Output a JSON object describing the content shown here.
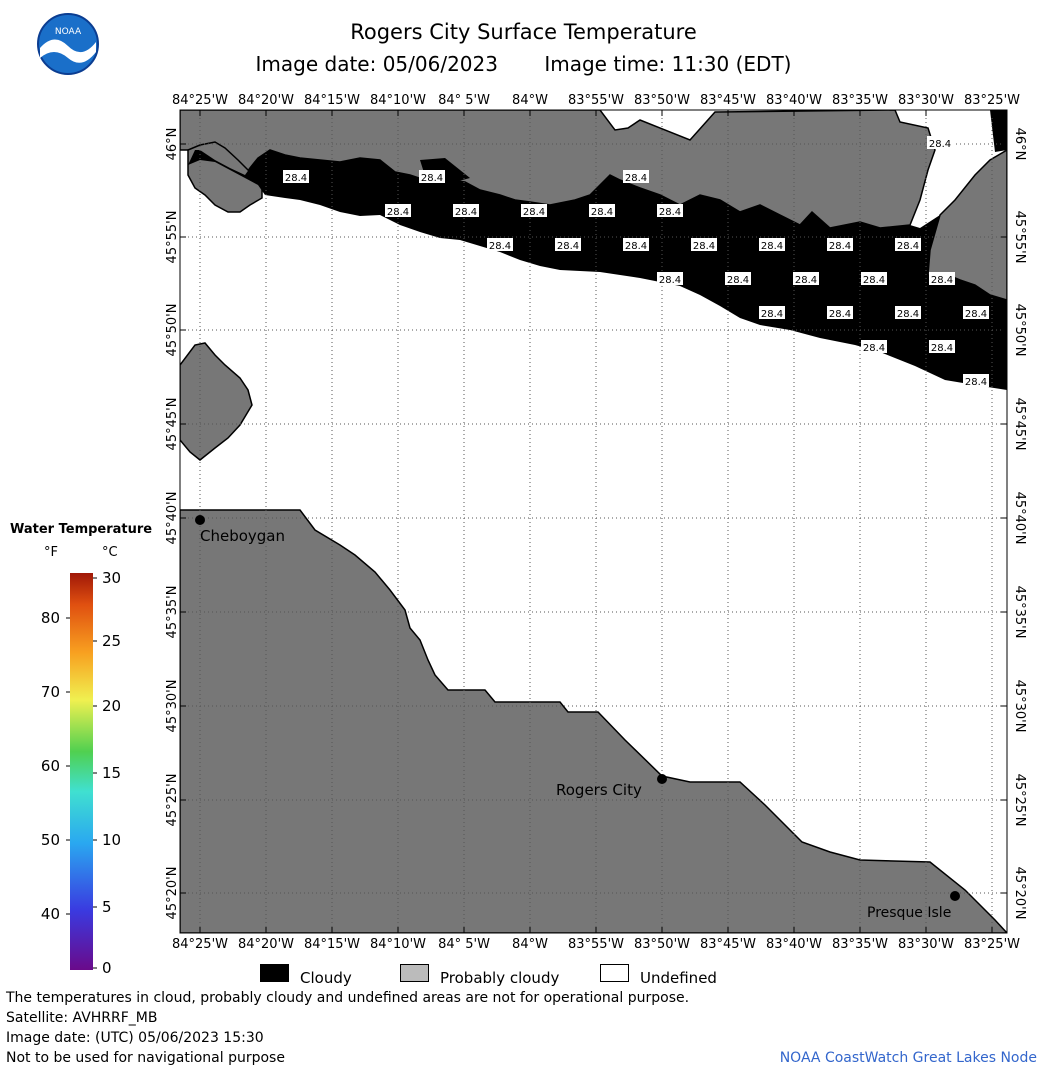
{
  "header": {
    "title": "Rogers City Surface Temperature",
    "image_date": "Image date: 05/06/2023",
    "image_time": "Image time: 11:30 (EDT)"
  },
  "logo": {
    "text": "NOAA"
  },
  "map": {
    "longitude_labels": [
      "84°25'W",
      "84°20'W",
      "84°15'W",
      "84°10'W",
      "84° 5'W",
      "84°W",
      "83°55'W",
      "83°50'W",
      "83°45'W",
      "83°40'W",
      "83°35'W",
      "83°30'W",
      "83°25'W"
    ],
    "latitude_labels": [
      "46°N",
      "45°55'N",
      "45°50'N",
      "45°45'N",
      "45°40'N",
      "45°35'N",
      "45°30'N",
      "45°25'N",
      "45°20'N"
    ],
    "cities": [
      {
        "name": "Cheboygan"
      },
      {
        "name": "Rogers City"
      },
      {
        "name": "Presque Isle"
      }
    ],
    "temperature_label": "28.4",
    "colors": {
      "land": "#777777",
      "cloud": "#000000",
      "undefined": "#ffffff",
      "grid": "#555555"
    }
  },
  "legend": {
    "title": "Water Temperature",
    "unit_f": "°F",
    "unit_c": "°C",
    "fahrenheit_ticks": [
      "80",
      "70",
      "60",
      "50",
      "40"
    ],
    "celsius_ticks": [
      "30",
      "25",
      "20",
      "15",
      "10",
      "5",
      "0"
    ]
  },
  "categories": [
    {
      "label": "Cloudy",
      "color": "#000000"
    },
    {
      "label": "Probably cloudy",
      "color": "#bbbbbb"
    },
    {
      "label": "Undefined",
      "color": "#ffffff"
    }
  ],
  "footer": {
    "disclaimer": "The temperatures in cloud, probably cloudy and undefined areas are not for operational purpose.",
    "satellite": "Satellite: AVHRRF_MB",
    "utc_date": "Image date: (UTC) 05/06/2023  15:30",
    "navigation": "Not to be used for navigational purpose",
    "credit": "NOAA CoastWatch Great Lakes Node"
  }
}
